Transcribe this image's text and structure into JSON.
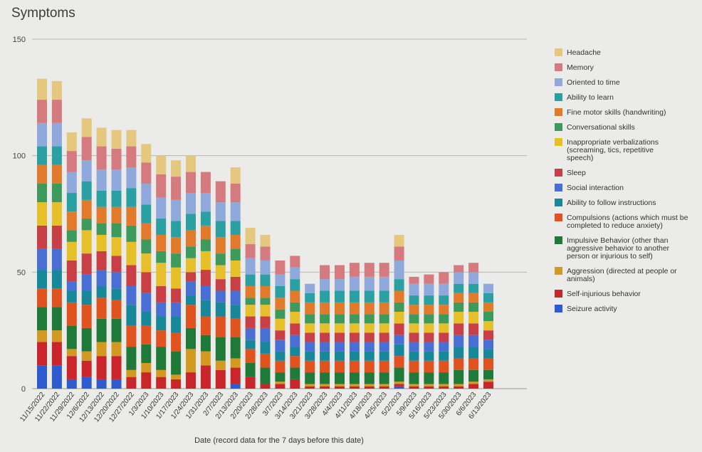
{
  "chart_data": {
    "type": "bar",
    "stacked": true,
    "title": "Symptoms",
    "xlabel": "Date (record data for the 7 days before this date)",
    "ylabel": "",
    "ylim": [
      0,
      150
    ],
    "yticks": [
      0,
      50,
      100,
      150
    ],
    "grid": true,
    "legend_position": "right",
    "categories": [
      "11/15/2022",
      "11/22/2022",
      "11/29/2022",
      "12/6/2022",
      "12/13/2022",
      "12/20/2022",
      "12/27/2022",
      "1/3/2023",
      "1/10/2023",
      "1/17/2023",
      "1/24/2023",
      "1/31/2023",
      "2/7/2023",
      "2/13/2023",
      "2/20/2023",
      "2/28/2023",
      "3/7/2023",
      "3/14/2023",
      "3/21/2023",
      "3/28/2023",
      "4/4/2023",
      "4/11/2023",
      "4/18/2023",
      "4/25/2023",
      "5/2/2023",
      "5/9/2023",
      "5/16/2023",
      "5/23/2023",
      "5/30/2023",
      "6/6/2023",
      "6/13/2023"
    ],
    "series": [
      {
        "name": "Seizure activity",
        "color": "#2f5bd0",
        "values": [
          10,
          10,
          4,
          5,
          4,
          4,
          0,
          0,
          0,
          0,
          0,
          0,
          0,
          2,
          0,
          0,
          0,
          0,
          0,
          0,
          0,
          0,
          0,
          0,
          1,
          0,
          0,
          0,
          0,
          0,
          0
        ]
      },
      {
        "name": "Self-injurious behavior",
        "color": "#c9252b",
        "values": [
          10,
          10,
          10,
          7,
          10,
          10,
          5,
          7,
          5,
          4,
          7,
          10,
          8,
          7,
          5,
          2,
          2,
          4,
          1,
          1,
          1,
          1,
          1,
          1,
          1,
          1,
          1,
          1,
          1,
          2,
          3
        ]
      },
      {
        "name": "Aggression (directed at people or animals)",
        "color": "#d39a22",
        "values": [
          5,
          5,
          3,
          4,
          6,
          6,
          3,
          4,
          3,
          2,
          10,
          6,
          4,
          4,
          0,
          0,
          1,
          0,
          1,
          1,
          1,
          1,
          1,
          1,
          1,
          1,
          1,
          1,
          1,
          1,
          1
        ]
      },
      {
        "name": "Impulsive Behavior (other than aggressive behavior to another person or injurious to self)",
        "color": "#1f7a3a",
        "values": [
          10,
          10,
          10,
          10,
          10,
          10,
          10,
          8,
          10,
          10,
          9,
          7,
          10,
          9,
          6,
          7,
          4,
          5,
          5,
          5,
          5,
          5,
          5,
          5,
          6,
          5,
          5,
          5,
          6,
          5,
          4
        ]
      },
      {
        "name": "Compulsions (actions which must be completed to reduce anxiety)",
        "color": "#e0521e",
        "values": [
          8,
          8,
          10,
          10,
          9,
          8,
          9,
          8,
          7,
          8,
          10,
          8,
          9,
          8,
          6,
          6,
          5,
          5,
          5,
          5,
          5,
          5,
          5,
          5,
          5,
          5,
          5,
          5,
          5,
          5,
          5
        ]
      },
      {
        "name": "Ability to follow instructions",
        "color": "#17889a",
        "values": [
          8,
          8,
          5,
          6,
          5,
          5,
          9,
          6,
          6,
          7,
          4,
          7,
          6,
          6,
          4,
          5,
          4,
          4,
          4,
          4,
          4,
          4,
          4,
          4,
          5,
          4,
          4,
          4,
          5,
          5,
          4
        ]
      },
      {
        "name": "Social interaction",
        "color": "#4a6fd4",
        "values": [
          9,
          9,
          4,
          7,
          7,
          7,
          8,
          8,
          6,
          6,
          6,
          6,
          5,
          6,
          5,
          6,
          5,
          5,
          4,
          4,
          4,
          4,
          4,
          4,
          4,
          4,
          4,
          4,
          5,
          5,
          4
        ]
      },
      {
        "name": "Sleep",
        "color": "#c84046",
        "values": [
          10,
          10,
          9,
          9,
          8,
          7,
          9,
          9,
          7,
          6,
          4,
          7,
          5,
          6,
          5,
          5,
          4,
          5,
          4,
          4,
          4,
          4,
          4,
          4,
          5,
          4,
          4,
          4,
          5,
          5,
          4
        ]
      },
      {
        "name": "Inappropriate verbalizations (screaming, tics, repetitive speech)",
        "color": "#e6c02a",
        "values": [
          10,
          10,
          8,
          10,
          7,
          8,
          10,
          8,
          10,
          9,
          6,
          8,
          6,
          7,
          5,
          5,
          5,
          5,
          4,
          4,
          4,
          4,
          4,
          4,
          5,
          4,
          4,
          4,
          5,
          5,
          4
        ]
      },
      {
        "name": "Conversational skills",
        "color": "#3b9a5c",
        "values": [
          8,
          8,
          5,
          5,
          5,
          6,
          7,
          6,
          5,
          6,
          5,
          5,
          5,
          5,
          3,
          3,
          4,
          4,
          4,
          4,
          4,
          4,
          4,
          4,
          4,
          4,
          4,
          4,
          4,
          4,
          4
        ]
      },
      {
        "name": "Fine motor skills (handwriting)",
        "color": "#e27a2c",
        "values": [
          8,
          8,
          8,
          8,
          7,
          7,
          8,
          7,
          7,
          7,
          7,
          6,
          7,
          6,
          5,
          5,
          5,
          5,
          5,
          5,
          5,
          5,
          5,
          5,
          5,
          4,
          4,
          4,
          4,
          4,
          4
        ]
      },
      {
        "name": "Ability to learn",
        "color": "#2aa0a2",
        "values": [
          8,
          8,
          8,
          8,
          7,
          7,
          8,
          8,
          7,
          7,
          7,
          6,
          7,
          6,
          5,
          5,
          5,
          5,
          4,
          5,
          5,
          5,
          5,
          5,
          5,
          4,
          4,
          4,
          4,
          4,
          4
        ]
      },
      {
        "name": "Oriented to time",
        "color": "#8fa9dc",
        "values": [
          10,
          10,
          9,
          9,
          9,
          9,
          9,
          9,
          9,
          9,
          9,
          8,
          8,
          8,
          7,
          6,
          5,
          5,
          4,
          5,
          5,
          6,
          6,
          6,
          8,
          5,
          5,
          5,
          5,
          5,
          4
        ]
      },
      {
        "name": "Memory",
        "color": "#d57a7e",
        "values": [
          10,
          10,
          9,
          10,
          10,
          9,
          9,
          9,
          10,
          10,
          9,
          9,
          9,
          8,
          6,
          6,
          6,
          5,
          0,
          6,
          6,
          6,
          6,
          6,
          6,
          3,
          4,
          5,
          3,
          4,
          0
        ]
      },
      {
        "name": "Headache",
        "color": "#e5c87e",
        "values": [
          9,
          8,
          8,
          8,
          8,
          8,
          7,
          8,
          8,
          7,
          7,
          0,
          0,
          7,
          7,
          5,
          0,
          0,
          0,
          0,
          0,
          0,
          0,
          0,
          5,
          0,
          0,
          0,
          0,
          0,
          0
        ]
      }
    ]
  }
}
